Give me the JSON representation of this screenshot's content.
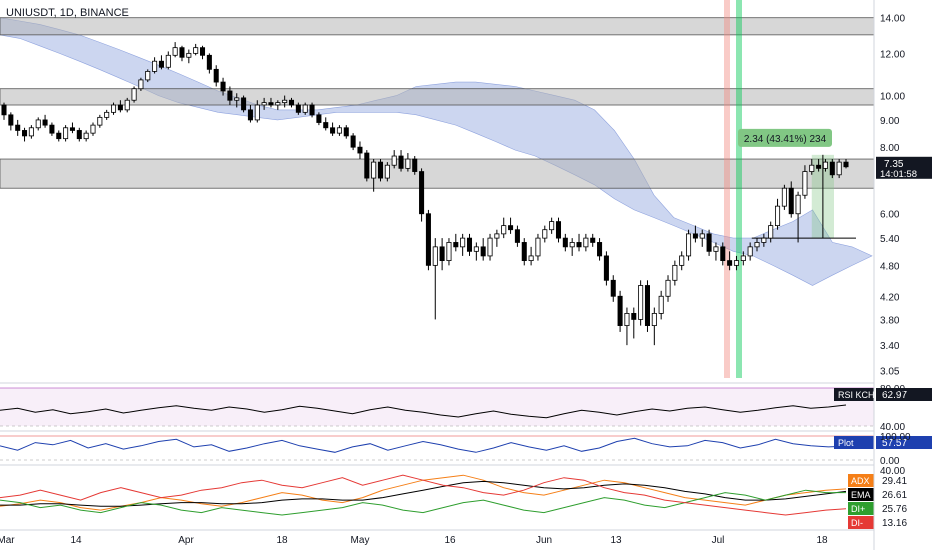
{
  "title": "UNIUSDT, 1D, BINANCE",
  "colors": {
    "up": "#ffffff",
    "down": "#000000",
    "cloud": "#8fa3de",
    "zone": "#b0b0b0",
    "rsi": "#000000",
    "plot": "#1e40af",
    "adx": "#f57f17",
    "ema": "#000000",
    "diplus": "#2e9e2e",
    "diminus": "#e53935",
    "measure": "#81c784",
    "vline_red": "#f28b82",
    "vline_green": "#00c853",
    "price_tag": "#131722"
  },
  "chart_data": {
    "type": "candlestick",
    "price_axis": {
      "scale": "log",
      "ticks": [
        "14.00",
        "12.00",
        "10.00",
        "9.00",
        "8.00",
        "6.00",
        "5.40",
        "4.80",
        "4.20",
        "3.80",
        "3.40",
        "3.05"
      ]
    },
    "date_axis": {
      "ticks": [
        "Mar",
        "14",
        "Apr",
        "18",
        "May",
        "16",
        "Jun",
        "13",
        "Jul",
        "18"
      ]
    },
    "candles": [
      [
        9.6,
        9.7,
        9.0,
        9.2
      ],
      [
        9.2,
        9.3,
        8.6,
        8.8
      ],
      [
        8.8,
        9.0,
        8.4,
        8.6
      ],
      [
        8.6,
        8.7,
        8.2,
        8.4
      ],
      [
        8.4,
        8.8,
        8.3,
        8.7
      ],
      [
        8.7,
        9.1,
        8.6,
        9.0
      ],
      [
        9.0,
        9.2,
        8.7,
        8.8
      ],
      [
        8.8,
        8.9,
        8.4,
        8.5
      ],
      [
        8.5,
        8.6,
        8.2,
        8.3
      ],
      [
        8.3,
        8.8,
        8.2,
        8.7
      ],
      [
        8.7,
        8.9,
        8.5,
        8.6
      ],
      [
        8.6,
        8.7,
        8.2,
        8.3
      ],
      [
        8.3,
        8.6,
        8.2,
        8.5
      ],
      [
        8.5,
        8.9,
        8.4,
        8.8
      ],
      [
        8.8,
        9.2,
        8.7,
        9.1
      ],
      [
        9.1,
        9.4,
        9.0,
        9.3
      ],
      [
        9.3,
        9.7,
        9.2,
        9.6
      ],
      [
        9.6,
        9.8,
        9.3,
        9.4
      ],
      [
        9.4,
        9.9,
        9.3,
        9.8
      ],
      [
        9.8,
        10.4,
        9.7,
        10.3
      ],
      [
        10.3,
        10.8,
        10.2,
        10.7
      ],
      [
        10.7,
        11.2,
        10.6,
        11.1
      ],
      [
        11.1,
        11.8,
        11.0,
        11.6
      ],
      [
        11.6,
        11.9,
        11.2,
        11.3
      ],
      [
        11.3,
        12.1,
        11.2,
        11.9
      ],
      [
        11.9,
        12.6,
        11.8,
        12.3
      ],
      [
        12.3,
        12.4,
        11.6,
        11.8
      ],
      [
        11.8,
        12.2,
        11.5,
        12.0
      ],
      [
        12.0,
        12.5,
        11.9,
        12.3
      ],
      [
        12.3,
        12.4,
        11.7,
        11.9
      ],
      [
        11.9,
        12.0,
        11.0,
        11.2
      ],
      [
        11.2,
        11.4,
        10.4,
        10.6
      ],
      [
        10.6,
        10.8,
        10.0,
        10.2
      ],
      [
        10.2,
        10.4,
        9.6,
        9.8
      ],
      [
        9.8,
        10.1,
        9.5,
        9.9
      ],
      [
        9.9,
        10.0,
        9.3,
        9.4
      ],
      [
        9.4,
        9.6,
        8.9,
        9.0
      ],
      [
        9.0,
        9.8,
        8.9,
        9.6
      ],
      [
        9.6,
        9.9,
        9.4,
        9.7
      ],
      [
        9.7,
        9.9,
        9.5,
        9.6
      ],
      [
        9.6,
        9.8,
        9.4,
        9.7
      ],
      [
        9.7,
        10.0,
        9.5,
        9.8
      ],
      [
        9.8,
        9.9,
        9.5,
        9.6
      ],
      [
        9.6,
        9.7,
        9.2,
        9.3
      ],
      [
        9.3,
        9.7,
        9.2,
        9.6
      ],
      [
        9.6,
        9.7,
        9.1,
        9.2
      ],
      [
        9.2,
        9.3,
        8.8,
        8.9
      ],
      [
        8.9,
        9.1,
        8.6,
        8.7
      ],
      [
        8.7,
        8.9,
        8.4,
        8.5
      ],
      [
        8.5,
        8.8,
        8.4,
        8.7
      ],
      [
        8.7,
        8.8,
        8.3,
        8.4
      ],
      [
        8.4,
        8.5,
        7.9,
        8.0
      ],
      [
        8.0,
        8.2,
        7.6,
        7.8
      ],
      [
        7.8,
        7.9,
        6.9,
        7.0
      ],
      [
        7.0,
        7.6,
        6.6,
        7.5
      ],
      [
        7.5,
        7.6,
        6.9,
        7.0
      ],
      [
        7.0,
        7.5,
        6.9,
        7.4
      ],
      [
        7.4,
        7.9,
        7.3,
        7.7
      ],
      [
        7.7,
        7.9,
        7.2,
        7.3
      ],
      [
        7.3,
        7.8,
        7.2,
        7.6
      ],
      [
        7.6,
        7.7,
        7.1,
        7.2
      ],
      [
        7.2,
        7.3,
        5.8,
        6.0
      ],
      [
        6.0,
        6.1,
        4.7,
        4.8
      ],
      [
        4.8,
        5.4,
        3.8,
        5.2
      ],
      [
        5.2,
        5.4,
        4.7,
        4.9
      ],
      [
        4.9,
        5.4,
        4.8,
        5.3
      ],
      [
        5.3,
        5.5,
        5.1,
        5.2
      ],
      [
        5.2,
        5.5,
        5.0,
        5.4
      ],
      [
        5.4,
        5.5,
        5.0,
        5.1
      ],
      [
        5.1,
        5.3,
        4.9,
        5.2
      ],
      [
        5.2,
        5.4,
        4.9,
        5.0
      ],
      [
        5.0,
        5.5,
        4.9,
        5.4
      ],
      [
        5.4,
        5.6,
        5.2,
        5.5
      ],
      [
        5.5,
        5.9,
        5.4,
        5.7
      ],
      [
        5.7,
        5.9,
        5.5,
        5.6
      ],
      [
        5.6,
        5.7,
        5.2,
        5.3
      ],
      [
        5.3,
        5.4,
        4.8,
        4.9
      ],
      [
        4.9,
        5.2,
        4.8,
        5.0
      ],
      [
        5.0,
        5.5,
        4.9,
        5.4
      ],
      [
        5.4,
        5.7,
        5.3,
        5.6
      ],
      [
        5.6,
        5.9,
        5.5,
        5.8
      ],
      [
        5.8,
        5.9,
        5.3,
        5.4
      ],
      [
        5.4,
        5.5,
        5.1,
        5.2
      ],
      [
        5.2,
        5.4,
        5.0,
        5.3
      ],
      [
        5.3,
        5.5,
        5.1,
        5.2
      ],
      [
        5.2,
        5.5,
        5.1,
        5.4
      ],
      [
        5.4,
        5.5,
        5.2,
        5.3
      ],
      [
        5.3,
        5.4,
        4.9,
        5.0
      ],
      [
        5.0,
        5.1,
        4.4,
        4.5
      ],
      [
        4.5,
        4.6,
        4.1,
        4.2
      ],
      [
        4.2,
        4.3,
        3.6,
        3.7
      ],
      [
        3.7,
        4.0,
        3.4,
        3.9
      ],
      [
        3.9,
        4.0,
        3.5,
        3.8
      ],
      [
        3.8,
        4.5,
        3.7,
        4.4
      ],
      [
        4.4,
        4.5,
        3.6,
        3.7
      ],
      [
        3.7,
        4.0,
        3.4,
        3.9
      ],
      [
        3.9,
        4.3,
        3.8,
        4.2
      ],
      [
        4.2,
        4.6,
        4.1,
        4.5
      ],
      [
        4.5,
        4.9,
        4.4,
        4.8
      ],
      [
        4.8,
        5.1,
        4.7,
        5.0
      ],
      [
        5.0,
        5.6,
        4.9,
        5.5
      ],
      [
        5.5,
        5.7,
        5.3,
        5.4
      ],
      [
        5.4,
        5.6,
        5.2,
        5.5
      ],
      [
        5.5,
        5.6,
        5.0,
        5.1
      ],
      [
        5.1,
        5.3,
        4.9,
        5.2
      ],
      [
        5.2,
        5.3,
        4.8,
        4.9
      ],
      [
        4.9,
        5.1,
        4.7,
        4.8
      ],
      [
        4.8,
        5.0,
        4.7,
        4.9
      ],
      [
        4.9,
        5.1,
        4.8,
        5.0
      ],
      [
        5.0,
        5.3,
        4.9,
        5.2
      ],
      [
        5.2,
        5.4,
        5.1,
        5.3
      ],
      [
        5.3,
        5.5,
        5.2,
        5.4
      ],
      [
        5.4,
        5.8,
        5.3,
        5.7
      ],
      [
        5.7,
        6.4,
        5.6,
        6.2
      ],
      [
        6.2,
        6.8,
        6.1,
        6.7
      ],
      [
        6.7,
        6.9,
        5.9,
        6.0
      ],
      [
        6.0,
        6.6,
        5.3,
        6.5
      ],
      [
        6.5,
        7.4,
        6.4,
        7.2
      ],
      [
        7.2,
        7.6,
        7.1,
        7.4
      ],
      [
        7.4,
        7.6,
        7.2,
        7.3
      ],
      [
        7.3,
        7.6,
        7.2,
        7.5
      ],
      [
        7.5,
        7.6,
        7.0,
        7.1
      ],
      [
        7.1,
        7.6,
        7.0,
        7.5
      ],
      [
        7.5,
        7.6,
        7.3,
        7.35
      ]
    ],
    "cloud_top": [
      14.0,
      13.8,
      13.6,
      13.3,
      13.0,
      12.6,
      12.2,
      11.8,
      11.4,
      11.0,
      10.6,
      10.2,
      9.9,
      9.6,
      9.4,
      9.4,
      9.4,
      9.5,
      9.6,
      9.8,
      10.0,
      10.4,
      10.5,
      10.6,
      10.6,
      10.5,
      10.4,
      10.2,
      10.0,
      9.8,
      9.4,
      8.6,
      7.6,
      6.5,
      5.9,
      5.7,
      5.5,
      5.4,
      5.4,
      5.6,
      5.8,
      6.1,
      5.3,
      5.2,
      5.0
    ],
    "cloud_bottom": [
      13.0,
      12.8,
      12.4,
      12.0,
      11.6,
      11.2,
      10.8,
      10.4,
      10.0,
      9.7,
      9.5,
      9.3,
      9.2,
      9.1,
      9.0,
      9.1,
      9.2,
      9.3,
      9.3,
      9.3,
      9.3,
      9.2,
      9.0,
      8.8,
      8.5,
      8.2,
      7.9,
      7.7,
      7.4,
      7.1,
      6.8,
      6.4,
      6.1,
      5.9,
      5.7,
      5.5,
      5.3,
      5.1,
      5.0,
      4.8,
      4.6,
      4.4,
      4.6,
      4.8,
      5.0
    ],
    "zones": [
      [
        13.0,
        14.0
      ],
      [
        9.6,
        10.3
      ],
      [
        6.7,
        7.6
      ]
    ],
    "measure": {
      "label": "2.34 (43.41%) 234"
    },
    "support_level": 5.4,
    "last_price": "7.35",
    "countdown": "14:01:58",
    "panes": [
      {
        "name": "RSI KCH",
        "value": "62.97",
        "ticks": [
          "80.00",
          "40.00"
        ],
        "band": [
          40,
          80
        ],
        "values": [
          55,
          58,
          52,
          56,
          50,
          53,
          57,
          51,
          55,
          59,
          62,
          58,
          55,
          60,
          57,
          52,
          56,
          61,
          58,
          54,
          50,
          56,
          60,
          55,
          52,
          48,
          45,
          50,
          54,
          49,
          46,
          44,
          50,
          55,
          52,
          48,
          53,
          57,
          54,
          58,
          60,
          56,
          52,
          55,
          59,
          62,
          58,
          60,
          63
        ]
      },
      {
        "name": "Plot",
        "value": "57.57",
        "ticks": [
          "100.00",
          "0.00"
        ],
        "band": [
          0,
          100
        ],
        "values": [
          60,
          40,
          75,
          65,
          85,
          50,
          70,
          45,
          60,
          80,
          90,
          55,
          65,
          35,
          50,
          70,
          85,
          60,
          45,
          30,
          55,
          70,
          40,
          60,
          80,
          65,
          45,
          30,
          50,
          75,
          55,
          40,
          60,
          35,
          50,
          80,
          95,
          70,
          55,
          60,
          85,
          75,
          50,
          65,
          90,
          70,
          60,
          55,
          58
        ]
      },
      {
        "name": "ADX",
        "value": "29.41",
        "ticks": [
          "40.00"
        ],
        "series": [
          {
            "name": "ADX",
            "value": "29.41",
            "values": [
              15,
              17,
              20,
              18,
              14,
              12,
              15,
              18,
              22,
              20,
              17,
              15,
              18,
              22,
              26,
              24,
              20,
              18,
              22,
              28,
              32,
              36,
              38,
              40,
              36,
              30,
              26,
              24,
              28,
              32,
              36,
              34,
              30,
              26,
              22,
              20,
              18,
              16,
              20,
              24,
              26,
              28,
              29
            ]
          },
          {
            "name": "EMA",
            "value": "26.61",
            "values": [
              16,
              16,
              17,
              17,
              16,
              15,
              15,
              16,
              17,
              18,
              18,
              17,
              17,
              18,
              20,
              21,
              21,
              20,
              20,
              22,
              25,
              28,
              31,
              34,
              35,
              34,
              32,
              30,
              29,
              30,
              32,
              33,
              32,
              30,
              27,
              25,
              22,
              20,
              20,
              21,
              23,
              25,
              27
            ]
          },
          {
            "name": "DI+",
            "value": "25.76",
            "values": [
              20,
              18,
              14,
              16,
              12,
              10,
              14,
              18,
              16,
              12,
              10,
              14,
              12,
              10,
              8,
              10,
              12,
              14,
              18,
              16,
              12,
              10,
              14,
              18,
              20,
              16,
              12,
              10,
              14,
              18,
              22,
              20,
              16,
              14,
              18,
              22,
              26,
              24,
              20,
              24,
              28,
              26,
              26
            ]
          },
          {
            "name": "DI-",
            "value": "13.16",
            "values": [
              22,
              24,
              28,
              24,
              20,
              26,
              30,
              26,
              22,
              24,
              28,
              30,
              34,
              36,
              32,
              30,
              34,
              38,
              32,
              36,
              40,
              36,
              32,
              30,
              26,
              24,
              28,
              34,
              38,
              36,
              30,
              26,
              24,
              20,
              18,
              16,
              14,
              12,
              10,
              8,
              10,
              12,
              13
            ]
          }
        ]
      }
    ]
  }
}
